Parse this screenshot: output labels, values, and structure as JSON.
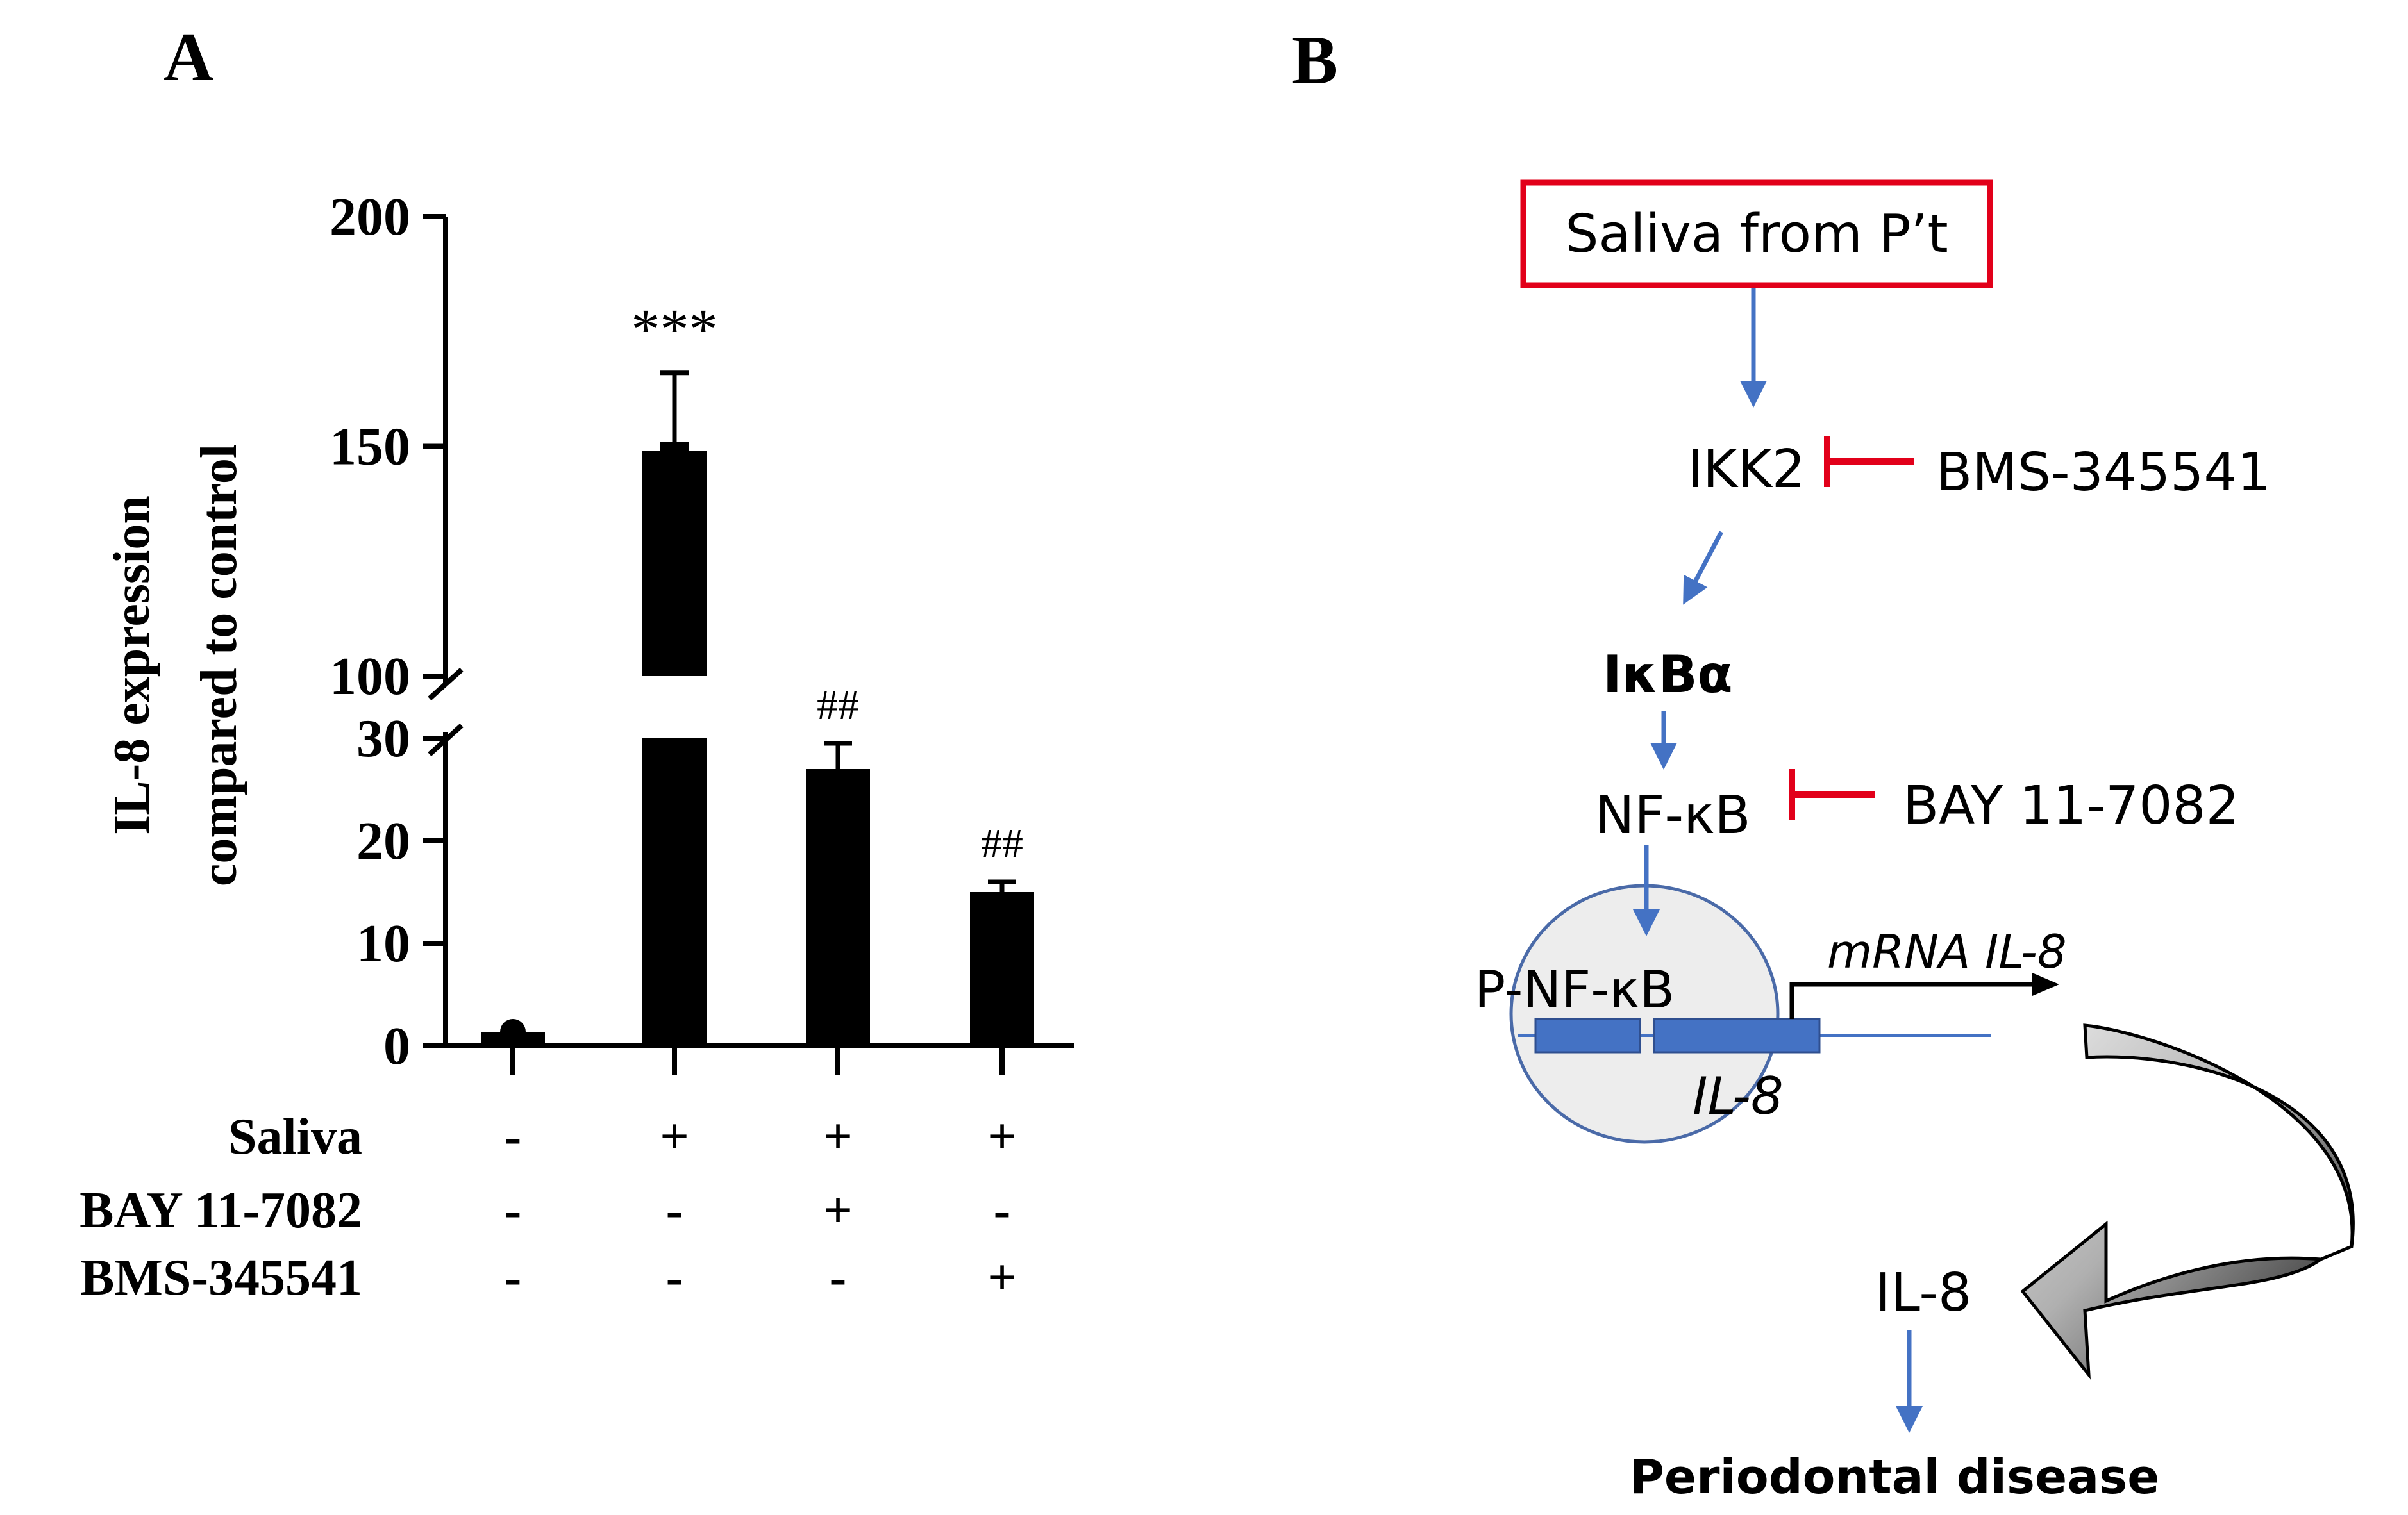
{
  "panel_a": {
    "label": "A",
    "ylabel_line1": "IL-8 expression",
    "ylabel_line2": "compared to control"
  },
  "panel_b": {
    "label": "B"
  },
  "chart_data": {
    "type": "bar",
    "title": "",
    "xlabel": "",
    "ylabel": "IL-8 expression compared to control",
    "categories": [
      "Control",
      "Saliva",
      "Saliva + BAY 11-7082",
      "Saliva + BMS-345541"
    ],
    "values": [
      1,
      149,
      27,
      15
    ],
    "errors": [
      0.4,
      17,
      2.5,
      1
    ],
    "annotations": [
      "",
      "***",
      "##",
      "##"
    ],
    "axis_break": [
      30,
      100
    ],
    "ylim": [
      0,
      200
    ],
    "yticks": [
      "0",
      "10",
      "20",
      "30",
      "100",
      "150",
      "200"
    ],
    "bar_color": "#000000",
    "treatments": [
      {
        "name": "Saliva",
        "signs": [
          "-",
          "+",
          "+",
          "+"
        ]
      },
      {
        "name": "BAY 11-7082",
        "signs": [
          "-",
          "-",
          "+",
          "-"
        ]
      },
      {
        "name": "BMS-345541",
        "signs": [
          "-",
          "-",
          "-",
          "+"
        ]
      }
    ]
  },
  "diagram": {
    "source": "Saliva from P’t",
    "ikk2": "IKK2",
    "inhibitor1": "BMS-345541",
    "ikba": "IκBα",
    "nfkb": "NF-κB",
    "inhibitor2": "BAY 11-7082",
    "pnfkb": "P-NF-κB",
    "gene": "IL-8",
    "mrna": "mRNA IL-8",
    "protein": "IL-8",
    "outcome": "Periodontal disease",
    "colors": {
      "box_border": "#e2001a",
      "arrow_blue": "#4472c4",
      "inhibit_red": "#e2001a",
      "red_text": "#e2001a",
      "nucleus_fill": "#ededed",
      "nucleus_stroke": "#4a6aa8",
      "gene_block": "#4472c4"
    }
  }
}
